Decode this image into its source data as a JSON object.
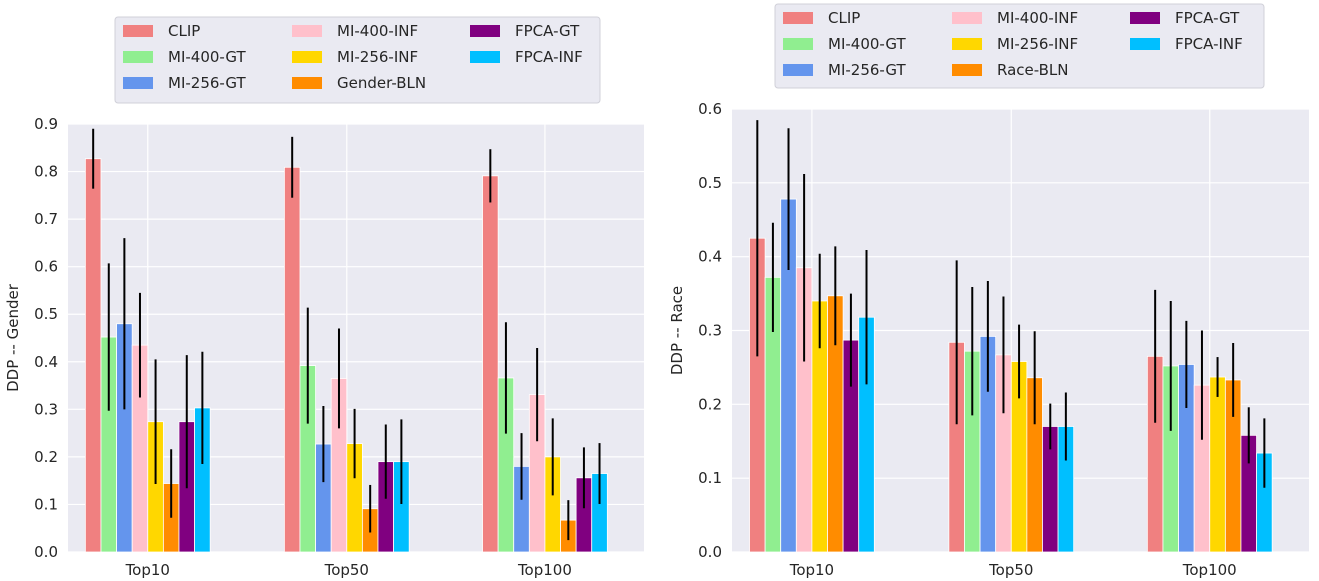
{
  "chart_data": [
    {
      "type": "bar",
      "ylabel": "DDP -- Gender",
      "xlabel": "",
      "ylim": [
        0,
        0.9
      ],
      "yticks": [
        "0.0",
        "0.1",
        "0.2",
        "0.3",
        "0.4",
        "0.5",
        "0.6",
        "0.7",
        "0.8",
        "0.9"
      ],
      "categories": [
        "Top10",
        "Top50",
        "Top100"
      ],
      "grid": true,
      "legend_position": "top",
      "series": [
        {
          "name": "CLIP",
          "color": "#f08080",
          "values": [
            0.827,
            0.809,
            0.791
          ],
          "errors": [
            0.063,
            0.064,
            0.056
          ]
        },
        {
          "name": "MI-400-GT",
          "color": "#90ee90",
          "values": [
            0.452,
            0.392,
            0.366
          ],
          "errors": [
            0.155,
            0.122,
            0.117
          ]
        },
        {
          "name": "MI-256-GT",
          "color": "#6495ed",
          "values": [
            0.48,
            0.227,
            0.18
          ],
          "errors": [
            0.18,
            0.08,
            0.07
          ]
        },
        {
          "name": "MI-400-INF",
          "color": "#ffc0cb",
          "values": [
            0.435,
            0.365,
            0.331
          ],
          "errors": [
            0.11,
            0.105,
            0.098
          ]
        },
        {
          "name": "MI-256-INF",
          "color": "#ffd700",
          "values": [
            0.274,
            0.228,
            0.2
          ],
          "errors": [
            0.131,
            0.073,
            0.081
          ]
        },
        {
          "name": "Gender-BLN",
          "color": "#ff8c00",
          "values": [
            0.144,
            0.091,
            0.067
          ],
          "errors": [
            0.072,
            0.05,
            0.042
          ]
        },
        {
          "name": "FPCA-GT",
          "color": "#800080",
          "values": [
            0.274,
            0.19,
            0.156
          ],
          "errors": [
            0.14,
            0.078,
            0.064
          ]
        },
        {
          "name": "FPCA-INF",
          "color": "#00bfff",
          "values": [
            0.303,
            0.19,
            0.165
          ],
          "errors": [
            0.118,
            0.089,
            0.064
          ]
        }
      ]
    },
    {
      "type": "bar",
      "ylabel": "DDP -- Race",
      "xlabel": "",
      "ylim": [
        0,
        0.6
      ],
      "yticks": [
        "0.0",
        "0.1",
        "0.2",
        "0.3",
        "0.4",
        "0.5",
        "0.6"
      ],
      "categories": [
        "Top10",
        "Top50",
        "Top100"
      ],
      "grid": true,
      "legend_position": "top",
      "series": [
        {
          "name": "CLIP",
          "color": "#f08080",
          "values": [
            0.425,
            0.284,
            0.265
          ],
          "errors": [
            0.16,
            0.111,
            0.09
          ]
        },
        {
          "name": "MI-400-GT",
          "color": "#90ee90",
          "values": [
            0.372,
            0.272,
            0.252
          ],
          "errors": [
            0.074,
            0.087,
            0.088
          ]
        },
        {
          "name": "MI-256-GT",
          "color": "#6495ed",
          "values": [
            0.478,
            0.292,
            0.254
          ],
          "errors": [
            0.096,
            0.075,
            0.059
          ]
        },
        {
          "name": "MI-400-INF",
          "color": "#ffc0cb",
          "values": [
            0.385,
            0.267,
            0.226
          ],
          "errors": [
            0.127,
            0.079,
            0.074
          ]
        },
        {
          "name": "MI-256-INF",
          "color": "#ffd700",
          "values": [
            0.34,
            0.258,
            0.237
          ],
          "errors": [
            0.064,
            0.05,
            0.027
          ]
        },
        {
          "name": "Race-BLN",
          "color": "#ff8c00",
          "values": [
            0.347,
            0.236,
            0.233
          ],
          "errors": [
            0.067,
            0.063,
            0.05
          ]
        },
        {
          "name": "FPCA-GT",
          "color": "#800080",
          "values": [
            0.287,
            0.17,
            0.158
          ],
          "errors": [
            0.063,
            0.031,
            0.038
          ]
        },
        {
          "name": "FPCA-INF",
          "color": "#00bfff",
          "values": [
            0.318,
            0.17,
            0.134
          ],
          "errors": [
            0.091,
            0.046,
            0.047
          ]
        }
      ]
    }
  ]
}
